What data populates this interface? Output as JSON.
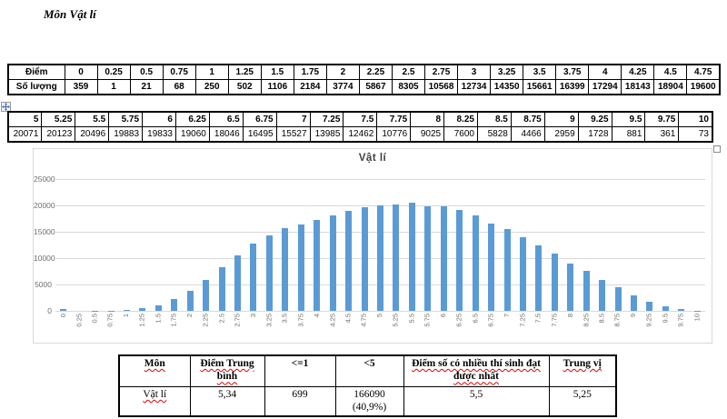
{
  "page": {
    "title": "Môn Vật lí"
  },
  "score_table_1": {
    "row1_label": "Điểm",
    "row2_label": "Số lượng",
    "scores": [
      "0",
      "0.25",
      "0.5",
      "0.75",
      "1",
      "1.25",
      "1.5",
      "1.75",
      "2",
      "2.25",
      "2.5",
      "2.75",
      "3",
      "3.25",
      "3.5",
      "3.75",
      "4",
      "4.25",
      "4.5",
      "4.75"
    ],
    "counts": [
      "359",
      "1",
      "21",
      "68",
      "250",
      "502",
      "1106",
      "2184",
      "3774",
      "5867",
      "8305",
      "10568",
      "12734",
      "14350",
      "15661",
      "16399",
      "17294",
      "18143",
      "18904",
      "19600"
    ]
  },
  "score_table_2": {
    "scores": [
      "5",
      "5.25",
      "5.5",
      "5.75",
      "6",
      "6.25",
      "6.5",
      "6.75",
      "7",
      "7.25",
      "7.5",
      "7.75",
      "8",
      "8.25",
      "8.5",
      "8.75",
      "9",
      "9.25",
      "9.5",
      "9.75",
      "10"
    ],
    "counts": [
      "20071",
      "20123",
      "20496",
      "19883",
      "19833",
      "19060",
      "18046",
      "16495",
      "15527",
      "13985",
      "12462",
      "10776",
      "9025",
      "7600",
      "5828",
      "4466",
      "2959",
      "1728",
      "881",
      "361",
      "73"
    ]
  },
  "chart_data": {
    "type": "bar",
    "title": "Vật lí",
    "categories": [
      "0",
      "0.25",
      "0.5",
      "0.75",
      "1",
      "1.25",
      "1.5",
      "1.75",
      "2",
      "2.25",
      "2.5",
      "2.75",
      "3",
      "3.25",
      "3.5",
      "3.75",
      "4",
      "4.25",
      "4.5",
      "4.75",
      "5",
      "5.25",
      "5.5",
      "5.75",
      "6",
      "6.25",
      "6.5",
      "6.75",
      "7",
      "7.25",
      "7.5",
      "7.75",
      "8",
      "8.25",
      "8.5",
      "8.75",
      "9",
      "9.25",
      "9.5",
      "9.75",
      "10"
    ],
    "values": [
      359,
      1,
      21,
      68,
      250,
      502,
      1106,
      2184,
      3774,
      5867,
      8305,
      10568,
      12734,
      14350,
      15661,
      16399,
      17294,
      18143,
      18904,
      19600,
      20071,
      20123,
      20496,
      19883,
      19833,
      19060,
      18046,
      16495,
      15527,
      13985,
      12462,
      10776,
      9025,
      7600,
      5828,
      4466,
      2959,
      1728,
      881,
      361,
      73
    ],
    "xlabel": "",
    "ylabel": "",
    "ylim": [
      0,
      25000
    ],
    "yticks": [
      "0",
      "5000",
      "10000",
      "15000",
      "20000",
      "25000"
    ],
    "grid": true,
    "legend": false,
    "bar_color": "#5b9bd5",
    "gridline_color": "#d9d9d9",
    "axis_label_color": "#6f6f6f"
  },
  "summary_table": {
    "headers": [
      {
        "text": "Môn",
        "misspelled": true
      },
      {
        "text": "Điểm Trung bình",
        "misspelled": true
      },
      {
        "text": "<=1",
        "misspelled": false
      },
      {
        "text": "<5",
        "misspelled": false
      },
      {
        "text": "Điểm số có nhiều thí sinh đạt được nhất",
        "misspelled": true
      },
      {
        "text": "Trung vị",
        "misspelled": true
      }
    ],
    "row": [
      {
        "text": "Vật lí",
        "misspelled": true
      },
      {
        "text": "5,34",
        "misspelled": false
      },
      {
        "text": "699",
        "misspelled": false
      },
      {
        "text": "166090 (40,9%)",
        "misspelled": false
      },
      {
        "text": "5,5",
        "misspelled": false
      },
      {
        "text": "5,25",
        "misspelled": false
      }
    ]
  },
  "icons": {
    "table_move_handle": "four-direction-move-arrows",
    "table_resize_handle": "small-square"
  }
}
